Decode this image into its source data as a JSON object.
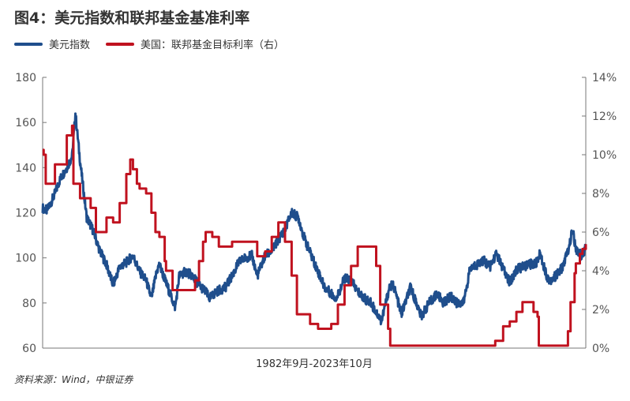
{
  "title": "图4：美元指数和联邦基金基准利率",
  "source": "资料来源：Wind，中银证券",
  "colors": {
    "dxy": "#1f4e8c",
    "fed": "#c0121f"
  },
  "chart_data": {
    "type": "line",
    "xlabel": "1982年9月-2023年10月",
    "x_range": [
      1982.67,
      2023.75
    ],
    "y_left": {
      "ylim": [
        60,
        180
      ],
      "ticks": [
        "60",
        "80",
        "100",
        "120",
        "140",
        "160",
        "180"
      ]
    },
    "y_right": {
      "ylim": [
        0,
        14
      ],
      "ticks": [
        "0%",
        "2%",
        "4%",
        "6%",
        "8%",
        "10%",
        "12%",
        "14%"
      ]
    },
    "legend_position": "top-left",
    "series": [
      {
        "name": "美元指数",
        "axis": "left",
        "points": [
          [
            1982.67,
            122
          ],
          [
            1983.0,
            121
          ],
          [
            1983.5,
            127
          ],
          [
            1984.0,
            135
          ],
          [
            1984.5,
            140
          ],
          [
            1984.9,
            145
          ],
          [
            1985.15,
            164
          ],
          [
            1985.5,
            143
          ],
          [
            1986.0,
            118
          ],
          [
            1986.5,
            112
          ],
          [
            1987.0,
            103
          ],
          [
            1987.5,
            97
          ],
          [
            1988.0,
            88
          ],
          [
            1988.5,
            96
          ],
          [
            1989.0,
            98
          ],
          [
            1989.5,
            101
          ],
          [
            1990.0,
            94
          ],
          [
            1990.5,
            90
          ],
          [
            1990.9,
            82
          ],
          [
            1991.3,
            94
          ],
          [
            1991.5,
            97
          ],
          [
            1992.0,
            89
          ],
          [
            1992.7,
            78
          ],
          [
            1993.0,
            92
          ],
          [
            1993.5,
            94
          ],
          [
            1994.0,
            92
          ],
          [
            1994.5,
            88
          ],
          [
            1995.0,
            85
          ],
          [
            1995.3,
            82
          ],
          [
            1995.8,
            85
          ],
          [
            1996.5,
            87
          ],
          [
            1997.0,
            92
          ],
          [
            1997.5,
            98
          ],
          [
            1998.0,
            100
          ],
          [
            1998.5,
            101
          ],
          [
            1998.9,
            92
          ],
          [
            1999.5,
            101
          ],
          [
            2000.0,
            103
          ],
          [
            2000.5,
            108
          ],
          [
            2001.0,
            113
          ],
          [
            2001.5,
            120
          ],
          [
            2002.0,
            118
          ],
          [
            2002.5,
            108
          ],
          [
            2003.0,
            101
          ],
          [
            2003.5,
            94
          ],
          [
            2004.0,
            87
          ],
          [
            2004.9,
            82
          ],
          [
            2005.5,
            91
          ],
          [
            2006.0,
            90
          ],
          [
            2006.5,
            85
          ],
          [
            2007.0,
            82
          ],
          [
            2007.5,
            80
          ],
          [
            2008.0,
            75
          ],
          [
            2008.3,
            72
          ],
          [
            2008.9,
            87
          ],
          [
            2009.2,
            88
          ],
          [
            2009.8,
            75
          ],
          [
            2010.5,
            87
          ],
          [
            2011.0,
            79
          ],
          [
            2011.3,
            74
          ],
          [
            2011.9,
            80
          ],
          [
            2012.5,
            84
          ],
          [
            2013.0,
            80
          ],
          [
            2013.5,
            83
          ],
          [
            2014.0,
            80
          ],
          [
            2014.5,
            80
          ],
          [
            2015.0,
            95
          ],
          [
            2015.5,
            97
          ],
          [
            2016.0,
            99
          ],
          [
            2016.5,
            96
          ],
          [
            2017.0,
            102
          ],
          [
            2017.5,
            95
          ],
          [
            2018.0,
            89
          ],
          [
            2018.5,
            95
          ],
          [
            2019.0,
            96
          ],
          [
            2019.5,
            97
          ],
          [
            2020.0,
            98
          ],
          [
            2020.3,
            102
          ],
          [
            2020.8,
            92
          ],
          [
            2021.0,
            90
          ],
          [
            2021.5,
            92
          ],
          [
            2022.0,
            96
          ],
          [
            2022.5,
            105
          ],
          [
            2022.75,
            113
          ],
          [
            2023.0,
            103
          ],
          [
            2023.3,
            102
          ],
          [
            2023.5,
            100
          ],
          [
            2023.75,
            106
          ]
        ]
      },
      {
        "name": "美国：联邦基金目标利率（右）",
        "axis": "right",
        "points": [
          [
            1982.67,
            10.25
          ],
          [
            1982.75,
            10.0
          ],
          [
            1982.9,
            8.5
          ],
          [
            1983.3,
            8.5
          ],
          [
            1983.6,
            9.5
          ],
          [
            1984.0,
            9.5
          ],
          [
            1984.5,
            11.0
          ],
          [
            1984.9,
            11.5
          ],
          [
            1985.0,
            8.5
          ],
          [
            1985.5,
            7.75
          ],
          [
            1986.0,
            7.75
          ],
          [
            1986.3,
            7.25
          ],
          [
            1986.7,
            6.0
          ],
          [
            1987.0,
            6.0
          ],
          [
            1987.5,
            6.75
          ],
          [
            1988.0,
            6.5
          ],
          [
            1988.5,
            7.5
          ],
          [
            1989.0,
            9.0
          ],
          [
            1989.3,
            9.75
          ],
          [
            1989.5,
            9.25
          ],
          [
            1989.8,
            8.5
          ],
          [
            1990.0,
            8.25
          ],
          [
            1990.5,
            8.0
          ],
          [
            1990.9,
            7.0
          ],
          [
            1991.2,
            6.0
          ],
          [
            1991.5,
            5.75
          ],
          [
            1991.9,
            4.5
          ],
          [
            1992.0,
            4.0
          ],
          [
            1992.5,
            3.0
          ],
          [
            1994.0,
            3.0
          ],
          [
            1994.2,
            3.5
          ],
          [
            1994.5,
            4.5
          ],
          [
            1994.8,
            5.5
          ],
          [
            1995.0,
            6.0
          ],
          [
            1995.5,
            5.75
          ],
          [
            1996.0,
            5.25
          ],
          [
            1997.0,
            5.5
          ],
          [
            1998.7,
            5.5
          ],
          [
            1998.9,
            4.75
          ],
          [
            1999.5,
            5.0
          ],
          [
            2000.0,
            5.75
          ],
          [
            2000.5,
            6.5
          ],
          [
            2001.0,
            5.5
          ],
          [
            2001.5,
            3.75
          ],
          [
            2001.9,
            1.75
          ],
          [
            2002.9,
            1.25
          ],
          [
            2003.5,
            1.0
          ],
          [
            2004.5,
            1.25
          ],
          [
            2005.0,
            2.25
          ],
          [
            2005.5,
            3.25
          ],
          [
            2006.0,
            4.25
          ],
          [
            2006.5,
            5.25
          ],
          [
            2007.6,
            5.25
          ],
          [
            2007.9,
            4.25
          ],
          [
            2008.2,
            2.25
          ],
          [
            2008.8,
            1.0
          ],
          [
            2008.96,
            0.125
          ],
          [
            2015.9,
            0.125
          ],
          [
            2016.9,
            0.375
          ],
          [
            2017.5,
            1.125
          ],
          [
            2018.0,
            1.375
          ],
          [
            2018.5,
            1.875
          ],
          [
            2018.96,
            2.375
          ],
          [
            2019.5,
            2.375
          ],
          [
            2019.8,
            1.875
          ],
          [
            2020.1,
            1.625
          ],
          [
            2020.2,
            0.125
          ],
          [
            2022.2,
            0.125
          ],
          [
            2022.4,
            0.875
          ],
          [
            2022.6,
            2.375
          ],
          [
            2022.9,
            3.875
          ],
          [
            2023.0,
            4.375
          ],
          [
            2023.3,
            4.875
          ],
          [
            2023.5,
            5.125
          ],
          [
            2023.75,
            5.375
          ]
        ]
      }
    ]
  }
}
